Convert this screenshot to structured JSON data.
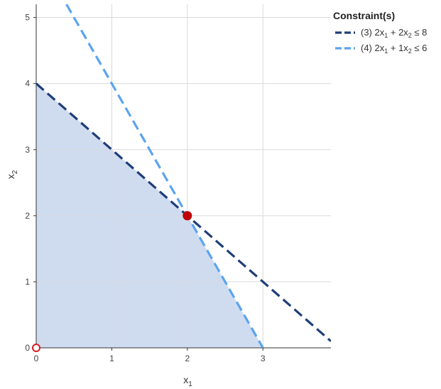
{
  "chart_data": {
    "type": "line",
    "xlabel": "x",
    "xlabel_sub": "1",
    "ylabel": "x",
    "ylabel_sub": "2",
    "xlim": [
      0,
      3.9
    ],
    "ylim": [
      0,
      5.2
    ],
    "xticks": [
      "0",
      "1",
      "2",
      "3"
    ],
    "yticks": [
      "0",
      "1",
      "2",
      "3",
      "4",
      "5"
    ],
    "grid": true,
    "legend_position": "top-right",
    "legend_title": "Constraint(s)",
    "series": [
      {
        "name": "(3) 2x1 + 2x2 ≤ 8",
        "color": "#1f3d7a",
        "style": "dashed",
        "x": [
          0,
          3.9
        ],
        "y": [
          4,
          0.1
        ],
        "label_parts": [
          {
            "t": "(3) 2x",
            "sub": false
          },
          {
            "t": "1",
            "sub": true
          },
          {
            "t": " + 2x",
            "sub": false
          },
          {
            "t": "2",
            "sub": true
          },
          {
            "t": " ≤ 8",
            "sub": false
          }
        ]
      },
      {
        "name": "(4) 2x1 + 1x2 ≤ 6",
        "color": "#5ba3f0",
        "style": "dashed",
        "x": [
          0.4,
          3
        ],
        "y": [
          5.2,
          0
        ],
        "label_parts": [
          {
            "t": "(4) 2x",
            "sub": false
          },
          {
            "t": "1",
            "sub": true
          },
          {
            "t": " + 1x",
            "sub": false
          },
          {
            "t": "2",
            "sub": true
          },
          {
            "t": " ≤ 6",
            "sub": false
          }
        ]
      }
    ],
    "feasible_region": {
      "color": "#cfdcf0",
      "vertices": [
        [
          0,
          0
        ],
        [
          0,
          4
        ],
        [
          2,
          2
        ],
        [
          3,
          0
        ]
      ]
    },
    "points": [
      {
        "x": 2,
        "y": 2,
        "style": "filled",
        "color": "#c00000"
      },
      {
        "x": 0,
        "y": 0,
        "style": "hollow",
        "color": "#d62020"
      }
    ]
  }
}
